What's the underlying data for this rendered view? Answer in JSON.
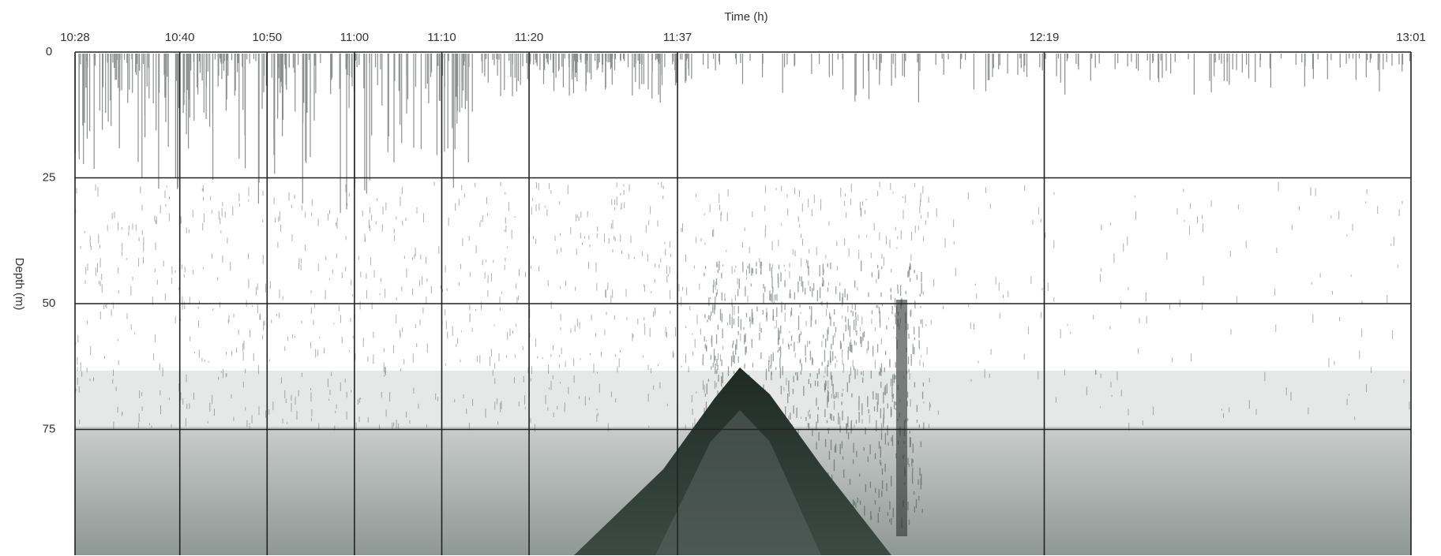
{
  "chart_data": {
    "type": "echogram",
    "x_label": "Time (h)",
    "y_label": "Depth (m)",
    "xlim": [
      628,
      781
    ],
    "xticks": [
      {
        "value": 628,
        "label": "10:28"
      },
      {
        "value": 640,
        "label": "10:40"
      },
      {
        "value": 650,
        "label": "10:50"
      },
      {
        "value": 660,
        "label": "11:00"
      },
      {
        "value": 670,
        "label": "11:10"
      },
      {
        "value": 680,
        "label": "11:20"
      },
      {
        "value": 697,
        "label": "11:37"
      },
      {
        "value": 739,
        "label": "12:19"
      },
      {
        "value": 781,
        "label": "13:01"
      }
    ],
    "ylim": [
      0,
      100
    ],
    "yticks": [
      0,
      25,
      50,
      75
    ],
    "y_inverted": true,
    "grid": true
  }
}
